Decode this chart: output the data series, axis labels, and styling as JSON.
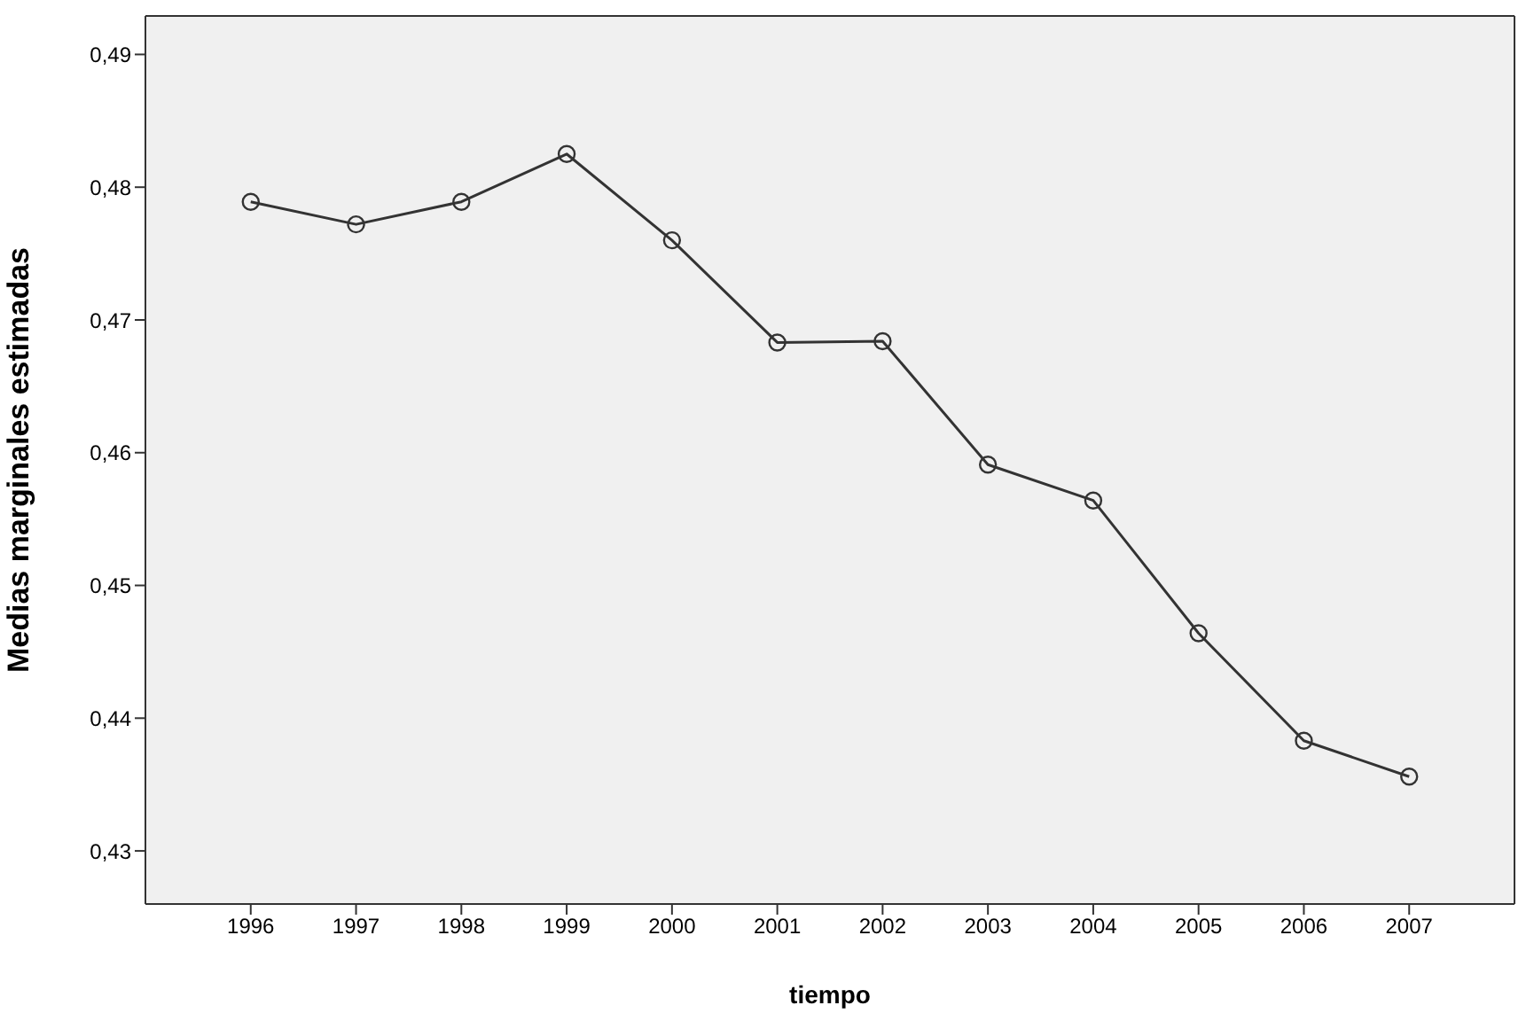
{
  "chart_data": {
    "type": "line",
    "xlabel": "tiempo",
    "ylabel": "Medias marginales estimadas",
    "categories": [
      "1996",
      "1997",
      "1998",
      "1999",
      "2000",
      "2001",
      "2002",
      "2003",
      "2004",
      "2005",
      "2006",
      "2007"
    ],
    "series": [
      {
        "color": "#333333",
        "values": [
          0.4789,
          0.4772,
          0.4789,
          0.4825,
          0.476,
          0.4683,
          0.4684,
          0.4591,
          0.4564,
          0.4464,
          0.4383,
          0.4356
        ]
      }
    ],
    "ylim": [
      0.426,
      0.4929
    ],
    "yticks": [
      {
        "value": 0.43,
        "label": "0,43"
      },
      {
        "value": 0.44,
        "label": "0,44"
      },
      {
        "value": 0.45,
        "label": "0,45"
      },
      {
        "value": 0.46,
        "label": "0,46"
      },
      {
        "value": 0.47,
        "label": "0,47"
      },
      {
        "value": 0.48,
        "label": "0,48"
      },
      {
        "value": 0.49,
        "label": "0,49"
      }
    ],
    "marker": "circle",
    "grid": false,
    "legend": false
  }
}
